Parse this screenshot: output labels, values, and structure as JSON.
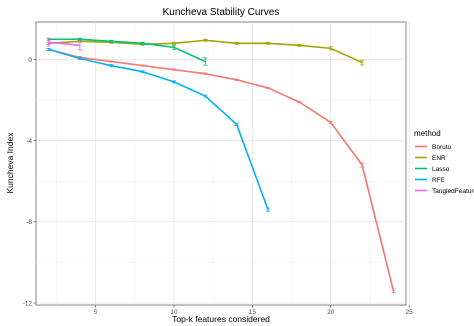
{
  "chart_data": {
    "type": "line",
    "title": "Kuncheva Stability Curves",
    "xlabel": "Top-k features considered",
    "ylabel": "Kuncheva Index",
    "xlim": [
      1.2,
      24.8
    ],
    "ylim": [
      -12.1,
      1.85
    ],
    "x_ticks": [
      5,
      10,
      15,
      20,
      25
    ],
    "y_ticks": [
      0,
      -4,
      -8,
      -12
    ],
    "grid": true,
    "legend": {
      "title": "method",
      "position": "right"
    },
    "series": [
      {
        "name": "Boruto",
        "color": "#F8766D",
        "x": [
          2,
          4,
          6,
          8,
          10,
          12,
          14,
          16,
          18,
          20,
          22,
          24
        ],
        "y": [
          0.5,
          0.1,
          -0.1,
          -0.3,
          -0.5,
          -0.7,
          -1.0,
          -1.4,
          -2.1,
          -3.1,
          -5.2,
          -11.4
        ],
        "errors": [
          0.05,
          0.05,
          0.03,
          0.03,
          0.03,
          0.03,
          0.03,
          0.03,
          0.03,
          0.05,
          0.1,
          0.08
        ]
      },
      {
        "name": "ENR",
        "color": "#A3A500",
        "x": [
          2,
          4,
          6,
          8,
          10,
          12,
          14,
          16,
          18,
          20,
          22
        ],
        "y": [
          0.8,
          0.9,
          0.85,
          0.75,
          0.8,
          0.95,
          0.8,
          0.8,
          0.7,
          0.55,
          -0.15
        ],
        "errors": [
          0.05,
          0.05,
          0.05,
          0.05,
          0.05,
          0.05,
          0.05,
          0.05,
          0.05,
          0.08,
          0.12
        ]
      },
      {
        "name": "Lasso",
        "color": "#00BF7D",
        "x": [
          2,
          4,
          6,
          8,
          10,
          12
        ],
        "y": [
          1.0,
          1.0,
          0.9,
          0.8,
          0.6,
          -0.1
        ],
        "errors": [
          0.05,
          0.05,
          0.05,
          0.05,
          0.1,
          0.18
        ]
      },
      {
        "name": "RFE",
        "color": "#00B0F6",
        "x": [
          2,
          4,
          6,
          8,
          10,
          12,
          14,
          16
        ],
        "y": [
          0.5,
          0.05,
          -0.3,
          -0.6,
          -1.1,
          -1.8,
          -3.2,
          -7.4
        ],
        "errors": [
          0.05,
          0.05,
          0.05,
          0.05,
          0.05,
          0.05,
          0.05,
          0.08
        ]
      },
      {
        "name": "TangledFeatures",
        "color": "#E76BF3",
        "x": [
          2,
          4
        ],
        "y": [
          0.85,
          0.7
        ],
        "errors": [
          0.18,
          0.22
        ]
      }
    ]
  }
}
